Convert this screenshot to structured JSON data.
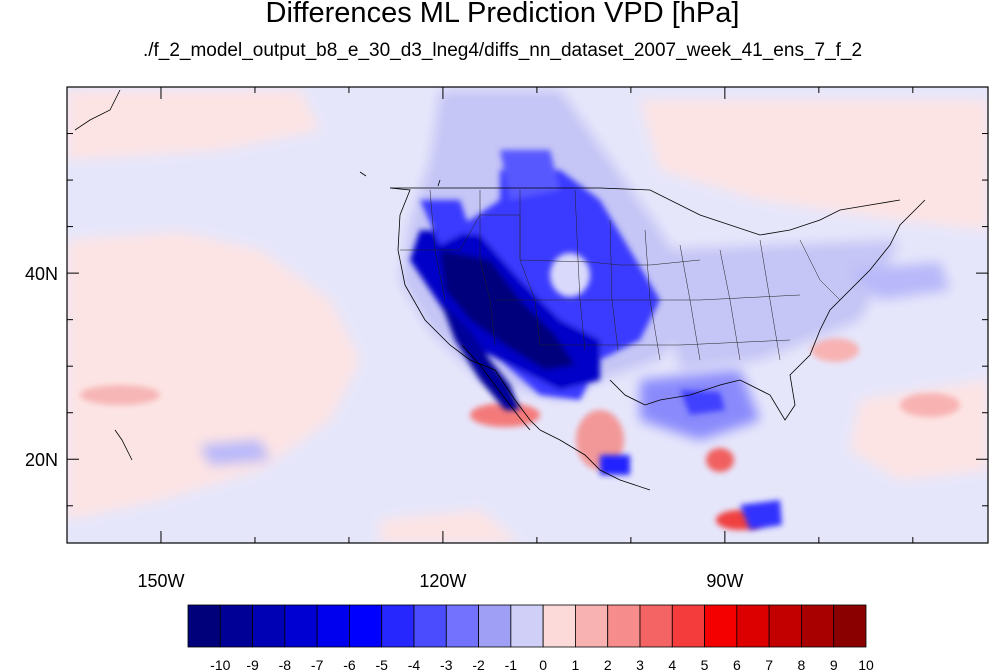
{
  "title": "Differences ML Prediction VPD [hPa]",
  "subtitle": "./f_2_model_output_b8_e_30_d3_lneg4/diffs_nn_dataset_2007_week_41_ens_7_f_2",
  "map": {
    "lon_range": [
      -160,
      -62
    ],
    "lat_range": [
      11,
      60
    ],
    "lat_ticks": [
      {
        "value": 40,
        "label": "40N"
      },
      {
        "value": 20,
        "label": "20N"
      }
    ],
    "lon_ticks": [
      {
        "value": -150,
        "label": "150W"
      },
      {
        "value": -120,
        "label": "120W"
      },
      {
        "value": -90,
        "label": "90W"
      }
    ]
  },
  "colorbar": {
    "labels": [
      "-10",
      "-9",
      "-8",
      "-7",
      "-6",
      "-5",
      "-4",
      "-3",
      "-2",
      "-1",
      "0",
      "1",
      "2",
      "3",
      "4",
      "5",
      "6",
      "7",
      "8",
      "9",
      "10"
    ],
    "colors": [
      "#00007a",
      "#000096",
      "#0000b4",
      "#0000d2",
      "#0000ee",
      "#0000ff",
      "#2626ff",
      "#4c4cff",
      "#7272ff",
      "#9f9ff5",
      "#cfcff7",
      "#fcdada",
      "#f8b2b2",
      "#f68c8c",
      "#f56464",
      "#f53c3c",
      "#f50000",
      "#dc0000",
      "#c30000",
      "#a80000",
      "#8a0000"
    ]
  }
}
